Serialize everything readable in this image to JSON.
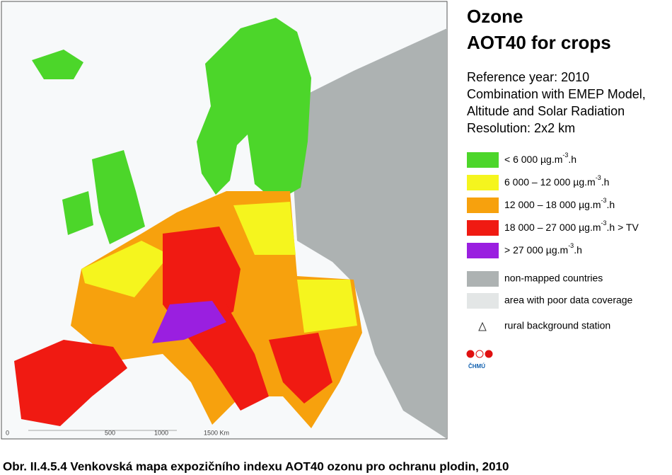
{
  "title": {
    "line1": "Ozone",
    "line2": "AOT40 for crops"
  },
  "info": [
    "Reference year: 2010",
    "Combination with EMEP Model,",
    "Altitude and Solar Radiation",
    "Resolution: 2x2 km"
  ],
  "legend": [
    {
      "color": "#4cd62a",
      "text": "<  6 000  µg.m",
      "sup": "-3",
      "suffix": ".h"
    },
    {
      "color": "#f5f51e",
      "text": "6 000 – 12 000  µg.m",
      "sup": "-3",
      "suffix": ".h"
    },
    {
      "color": "#f7a10d",
      "text": "12 000 – 18 000  µg.m",
      "sup": "-3",
      "suffix": ".h"
    },
    {
      "color": "#f01a12",
      "text": "18 000 – 27 000  µg.m",
      "sup": "-3",
      "suffix": ".h  > TV"
    },
    {
      "color": "#9a1fe0",
      "text": ">  27 000  µg.m",
      "sup": "-3",
      "suffix": ".h"
    }
  ],
  "extra_legend": [
    {
      "color": "#adb2b2",
      "text": "non-mapped countries"
    },
    {
      "color": "#e3e6e6",
      "text": "area with poor data coverage"
    },
    {
      "text": "rural background station"
    }
  ],
  "logo": "ČHMÚ",
  "scale": [
    "0",
    "500",
    "1000",
    "1500 Km"
  ],
  "caption": "Obr. II.4.5.4  Venkovská mapa expozičního indexu AOT40 ozonu pro ochranu plodin, 2010"
}
